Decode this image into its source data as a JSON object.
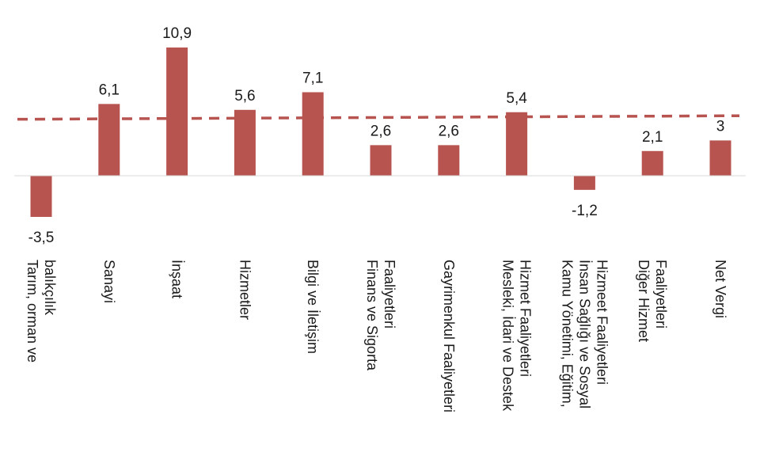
{
  "chart_data": {
    "type": "bar",
    "title": "",
    "xlabel": "",
    "ylabel": "",
    "categories": [
      "Tarım, orman ve balıkçılık",
      "Sanayi",
      "İnşaat",
      "Hizmetler",
      "Bilgi ve İletişim",
      "Finans ve Sigorta Faaliyetleri",
      "Gayrimenkul Faaliyetleri",
      "Mesleki, İdari ve Destek Hizmet Faaliyetleri",
      "Kamu Yönetimi, Eğitim, İnsan Sağlığı ve Sosyal Hizmeet Faaliyetleri",
      "Diğer Hizmet Faaliyetleri",
      "Net Vergi"
    ],
    "category_lines": [
      [
        "Tarım, orman ve",
        "balıkçılık"
      ],
      [
        "Sanayi"
      ],
      [
        "İnşaat"
      ],
      [
        "Hizmetler"
      ],
      [
        "Bilgi ve İletişim"
      ],
      [
        "Finans ve Sigorta",
        "Faaliyetleri"
      ],
      [
        "Gayrimenkul Faaliyetleri"
      ],
      [
        "Mesleki, İdari ve Destek",
        "Hizmet Faaliyetleri"
      ],
      [
        "Kamu Yönetimi, Eğitim,",
        "İnsan Sağlığı ve Sosyal",
        "Hizmeet Faaliyetleri"
      ],
      [
        "Diğer Hizmet",
        "Faaliyetleri"
      ],
      [
        "Net Vergi"
      ]
    ],
    "values": [
      -3.5,
      6.1,
      10.9,
      5.6,
      7.1,
      2.6,
      2.6,
      5.4,
      -1.2,
      2.1,
      3
    ],
    "value_labels": [
      "-3,5",
      "6,1",
      "10,9",
      "5,6",
      "7,1",
      "2,6",
      "2,6",
      "5,4",
      "-1,2",
      "2,1",
      "3"
    ],
    "reference_line": {
      "value": 4.8,
      "value_right": 5.1,
      "style": "dashed"
    },
    "ylim": [
      -4,
      12
    ],
    "grid": false,
    "legend": "none",
    "colors": {
      "bar": "#b85450",
      "reference_line": "#b85450",
      "text": "#1a1a1a"
    }
  }
}
